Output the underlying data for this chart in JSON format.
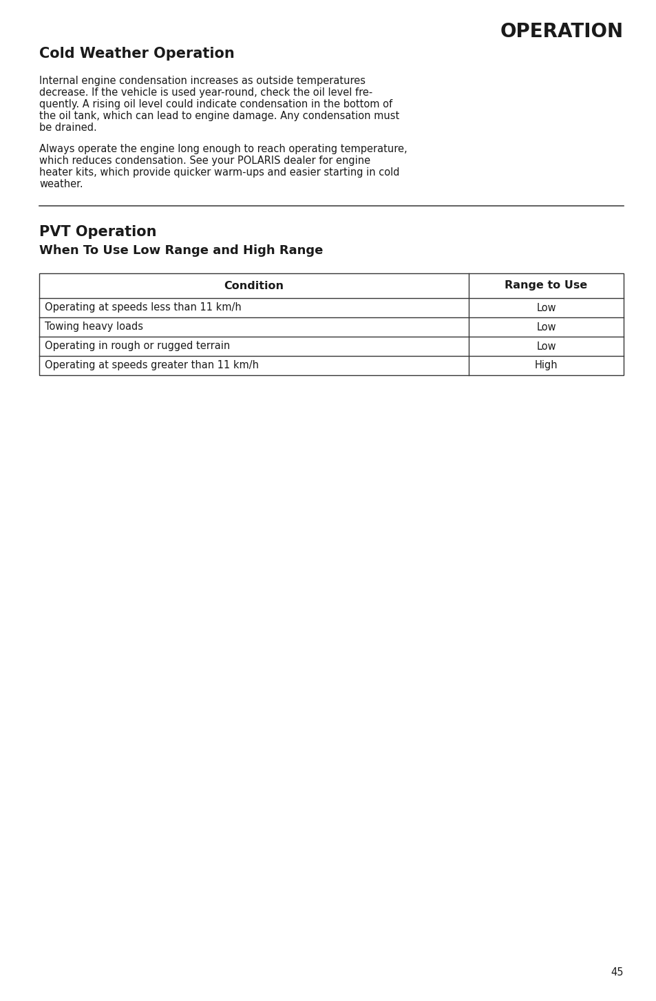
{
  "page_number": "45",
  "bg_color": "#ffffff",
  "text_color": "#1a1a1a",
  "section_title": "OPERATION",
  "section_title_fontsize": 20,
  "cold_weather_title": "Cold Weather Operation",
  "cold_weather_title_fontsize": 15,
  "para1_lines": [
    "Internal engine condensation increases as outside temperatures",
    "decrease. If the vehicle is used year-round, check the oil level fre-",
    "quently. A rising oil level could indicate condensation in the bottom of",
    "the oil tank, which can lead to engine damage. Any condensation must",
    "be drained."
  ],
  "para2_lines": [
    "Always operate the engine long enough to reach operating temperature,",
    "which reduces condensation. See your POLARIS dealer for engine",
    "heater kits, which provide quicker warm-ups and easier starting in cold",
    "weather."
  ],
  "body_fontsize": 10.5,
  "pvt_title": "PVT Operation",
  "pvt_title_fontsize": 15,
  "pvt_subtitle": "When To Use Low Range and High Range",
  "pvt_subtitle_fontsize": 13,
  "table_header": [
    "Condition",
    "Range to Use"
  ],
  "table_rows": [
    [
      "Operating at speeds less than 11 km/h",
      "Low"
    ],
    [
      "Towing heavy loads",
      "Low"
    ],
    [
      "Operating in rough or rugged terrain",
      "Low"
    ],
    [
      "Operating at speeds greater than 11 km/h",
      "High"
    ]
  ],
  "table_fontsize": 10.5,
  "table_header_fontsize": 11.5
}
